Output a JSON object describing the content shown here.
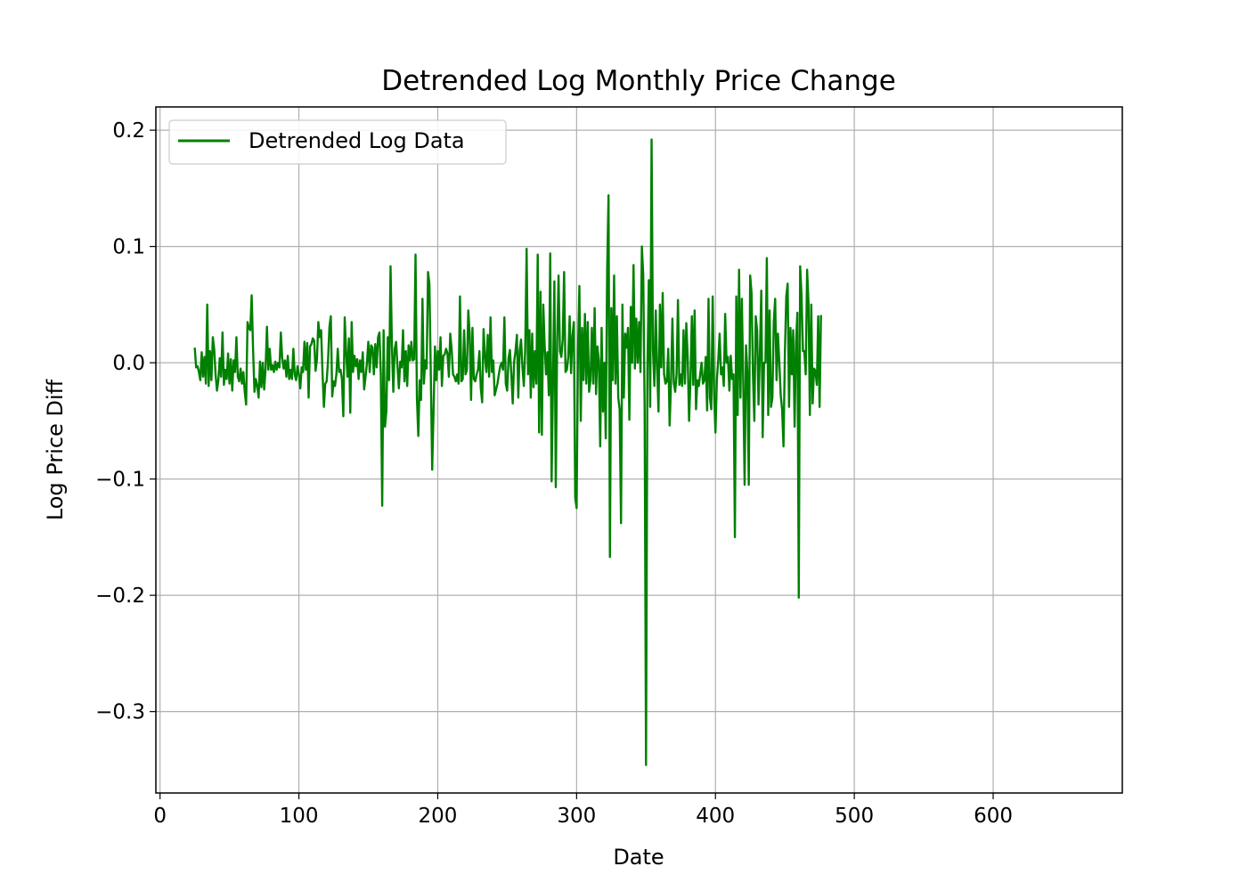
{
  "chart_data": {
    "type": "line",
    "title": "Detrended Log Monthly Price Change",
    "xlabel": "Date",
    "ylabel": "Log Price Diff",
    "xlim": [
      -3,
      693
    ],
    "ylim": [
      -0.37,
      0.22
    ],
    "xticks": [
      0,
      100,
      200,
      300,
      400,
      500,
      600
    ],
    "xtick_labels": [
      "0",
      "100",
      "200",
      "300",
      "400",
      "500",
      "600"
    ],
    "yticks": [
      -0.3,
      -0.2,
      -0.1,
      0.0,
      0.1,
      0.2
    ],
    "ytick_labels": [
      "−0.3",
      "−0.2",
      "−0.1",
      "0.0",
      "0.1",
      "0.2"
    ],
    "grid": true,
    "legend": {
      "position": "top-left",
      "label": "Detrended Log Data"
    },
    "series": [
      {
        "name": "Detrended Log Data",
        "color": "#008000",
        "x_start": 25,
        "x_step": 1,
        "values": [
          0.013,
          -0.004,
          -0.003,
          -0.008,
          -0.015,
          0.009,
          -0.012,
          0.005,
          -0.018,
          0.05,
          -0.02,
          0.01,
          -0.015,
          0.022,
          0.012,
          -0.01,
          -0.024,
          -0.015,
          0.004,
          -0.012,
          0.026,
          -0.019,
          -0.006,
          -0.014,
          0.008,
          -0.018,
          0.003,
          -0.024,
          0.002,
          -0.008,
          0.022,
          -0.012,
          -0.016,
          -0.005,
          -0.018,
          -0.008,
          -0.025,
          -0.036,
          0.035,
          0.03,
          0.028,
          0.058,
          0.012,
          -0.025,
          -0.014,
          -0.02,
          -0.03,
          0.001,
          -0.021,
          0.0,
          -0.023,
          -0.005,
          0.031,
          -0.006,
          0.012,
          -0.006,
          -0.002,
          -0.008,
          0.001,
          -0.006,
          0.0,
          -0.004,
          0.026,
          0.004,
          -0.005,
          0.002,
          -0.012,
          0.006,
          -0.014,
          -0.006,
          -0.014,
          0.012,
          -0.01,
          -0.015,
          -0.003,
          -0.01,
          -0.022,
          -0.004,
          -0.008,
          0.018,
          -0.006,
          0.017,
          -0.03,
          0.014,
          0.016,
          0.021,
          0.019,
          -0.007,
          0.003,
          0.035,
          0.022,
          0.028,
          -0.008,
          -0.038,
          -0.018,
          -0.016,
          0.002,
          0.031,
          0.04,
          -0.029,
          -0.016,
          -0.02,
          -0.01,
          0.012,
          -0.008,
          -0.006,
          -0.014,
          -0.046,
          0.039,
          0.01,
          -0.012,
          0.021,
          -0.043,
          0.035,
          -0.008,
          0.006,
          -0.003,
          0.003,
          -0.014,
          0.002,
          -0.008,
          0.009,
          -0.023,
          -0.012,
          0.0,
          0.018,
          -0.008,
          0.015,
          0.013,
          -0.01,
          0.016,
          -0.004,
          0.022,
          0.026,
          -0.01,
          -0.123,
          0.028,
          -0.055,
          -0.042,
          0.022,
          -0.015,
          0.083,
          0.015,
          -0.025,
          0.012,
          0.018,
          -0.003,
          -0.022,
          0.001,
          -0.004,
          0.028,
          -0.016,
          0.01,
          -0.02,
          0.015,
          0.002,
          0.018,
          0.002,
          0.003,
          0.093,
          -0.03,
          -0.063,
          -0.015,
          -0.032,
          0.055,
          -0.018,
          0.002,
          -0.005,
          0.078,
          0.068,
          -0.01,
          -0.092,
          -0.04,
          0.014,
          -0.015,
          0.01,
          -0.006,
          0.022,
          -0.02,
          0.006,
          0.007,
          0.012,
          0.008,
          -0.012,
          0.025,
          0.012,
          -0.01,
          -0.012,
          -0.016,
          -0.01,
          -0.018,
          0.057,
          -0.016,
          -0.014,
          0.028,
          -0.01,
          -0.006,
          0.045,
          0.025,
          -0.032,
          0.03,
          -0.014,
          -0.016,
          -0.01,
          -0.006,
          0.01,
          -0.022,
          -0.034,
          0.029,
          0.006,
          -0.008,
          0.024,
          -0.012,
          0.039,
          -0.008,
          0.002,
          -0.028,
          -0.023,
          -0.018,
          -0.01,
          -0.003,
          0.0,
          -0.006,
          0.039,
          -0.018,
          -0.024,
          0.004,
          0.011,
          -0.01,
          -0.035,
          0.001,
          0.01,
          0.024,
          -0.03,
          0.01,
          0.02,
          -0.004,
          -0.02,
          0.012,
          0.098,
          -0.01,
          0.028,
          -0.03,
          0.025,
          -0.021,
          0.01,
          -0.018,
          0.093,
          -0.06,
          0.061,
          -0.062,
          0.05,
          0.015,
          -0.01,
          0.009,
          -0.028,
          0.094,
          -0.102,
          -0.016,
          0.07,
          -0.107,
          0.018,
          0.075,
          0.01,
          0.005,
          0.02,
          0.078,
          -0.008,
          -0.006,
          0.005,
          0.04,
          -0.009,
          0.023,
          0.035,
          -0.116,
          -0.125,
          0.01,
          0.066,
          -0.05,
          0.03,
          -0.015,
          0.042,
          -0.018,
          0.035,
          -0.025,
          -0.015,
          0.03,
          -0.018,
          0.047,
          -0.027,
          0.014,
          0.002,
          -0.072,
          0.03,
          -0.042,
          0.0,
          -0.065,
          0.08,
          0.144,
          -0.167,
          0.047,
          -0.015,
          0.075,
          -0.018,
          0.04,
          -0.03,
          -0.04,
          -0.138,
          0.05,
          -0.03,
          0.025,
          0.013,
          0.03,
          -0.049,
          0.048,
          0.0,
          0.084,
          -0.005,
          0.038,
          0.0,
          0.035,
          -0.008,
          0.1,
          0.075,
          -0.04,
          -0.346,
          -0.005,
          0.071,
          -0.038,
          0.192,
          0.011,
          -0.02,
          0.045,
          -0.005,
          -0.042,
          0.05,
          -0.004,
          0.06,
          -0.01,
          -0.018,
          -0.016,
          0.012,
          -0.054,
          -0.017,
          0.038,
          -0.017,
          -0.025,
          -0.01,
          0.054,
          -0.019,
          -0.01,
          -0.02,
          0.028,
          -0.018,
          0.034,
          0.005,
          -0.05,
          -0.015,
          0.04,
          -0.019,
          0.045,
          -0.04,
          -0.015,
          -0.02,
          -0.01,
          0.0,
          -0.018,
          -0.015,
          0.005,
          -0.041,
          0.055,
          -0.03,
          -0.04,
          0.057,
          -0.025,
          -0.06,
          -0.015,
          0.002,
          0.025,
          -0.01,
          -0.004,
          -0.02,
          0.042,
          0.0,
          0.005,
          -0.024,
          0.006,
          -0.014,
          -0.01,
          -0.15,
          0.057,
          -0.045,
          0.08,
          -0.03,
          0.055,
          -0.016,
          -0.105,
          0.015,
          -0.008,
          -0.105,
          0.075,
          0.06,
          -0.01,
          -0.05,
          0.04,
          0.028,
          -0.036,
          0.008,
          0.062,
          -0.064,
          0.0,
          0.0,
          0.09,
          -0.045,
          0.045,
          -0.038,
          -0.03,
          0.035,
          0.055,
          -0.015,
          0.025,
          0.0,
          -0.028,
          -0.04,
          -0.072,
          0.008,
          0.057,
          0.068,
          -0.038,
          0.03,
          -0.01,
          0.028,
          -0.055,
          0.017,
          0.043,
          -0.202,
          0.083,
          0.058,
          0.01,
          0.01,
          -0.01,
          0.08,
          0.052,
          -0.045,
          0.05,
          -0.035,
          -0.005,
          -0.007,
          -0.019,
          0.04,
          -0.038,
          0.041
        ]
      }
    ]
  }
}
